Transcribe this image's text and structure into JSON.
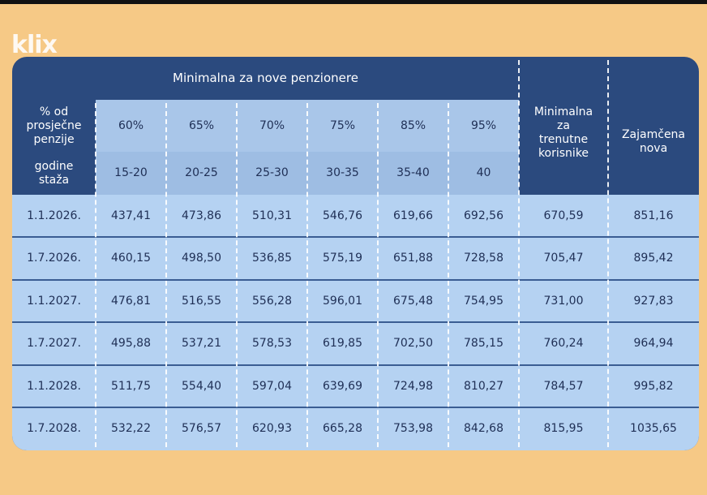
{
  "logo": "klix",
  "table": {
    "group_header": "Minimalna za nove penzionere",
    "row_headers": [
      "% od prosječne penzije",
      "godine staža"
    ],
    "percentages": [
      "60%",
      "65%",
      "70%",
      "75%",
      "85%",
      "95%"
    ],
    "years": [
      "15-20",
      "20-25",
      "25-30",
      "30-35",
      "35-40",
      "40"
    ],
    "extra_headers": [
      "Minimalna za trenutne korisnike",
      "Zajamčena nova"
    ],
    "rows": [
      [
        "1.1.2026.",
        "437,41",
        "473,86",
        "510,31",
        "546,76",
        "619,66",
        "692,56",
        "670,59",
        "851,16"
      ],
      [
        "1.7.2026.",
        "460,15",
        "498,50",
        "536,85",
        "575,19",
        "651,88",
        "728,58",
        "705,47",
        "895,42"
      ],
      [
        "1.1.2027.",
        "476,81",
        "516,55",
        "556,28",
        "596,01",
        "675,48",
        "754,95",
        "731,00",
        "927,83"
      ],
      [
        "1.7.2027.",
        "495,88",
        "537,21",
        "578,53",
        "619,85",
        "702,50",
        "785,15",
        "760,24",
        "964,94"
      ],
      [
        "1.1.2028.",
        "511,75",
        "554,40",
        "597,04",
        "639,69",
        "724,98",
        "810,27",
        "784,57",
        "995,82"
      ],
      [
        "1.7.2028.",
        "532,22",
        "576,57",
        "620,93",
        "665,28",
        "753,98",
        "842,68",
        "815,95",
        "1035,65"
      ]
    ]
  }
}
